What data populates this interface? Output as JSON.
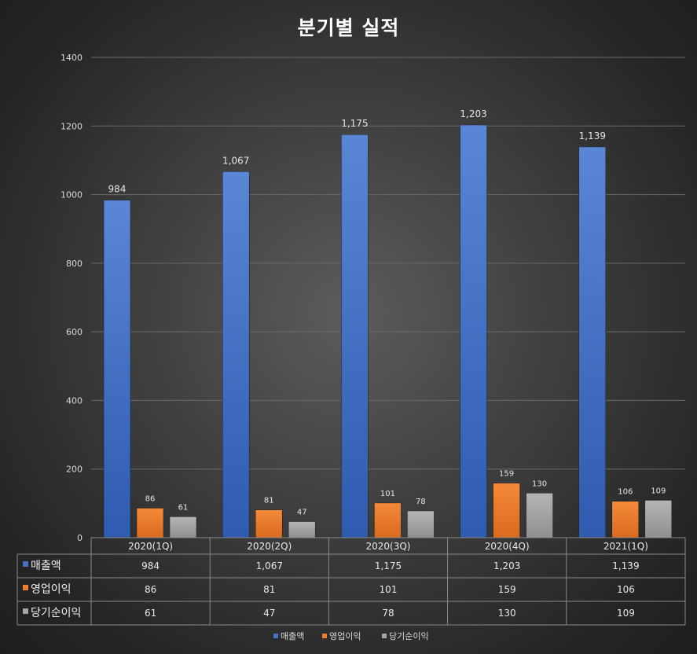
{
  "chart_data": {
    "type": "bar",
    "title": "분기별 실적",
    "categories": [
      "2020(1Q)",
      "2020(2Q)",
      "2020(3Q)",
      "2020(4Q)",
      "2021(1Q)"
    ],
    "series": [
      {
        "name": "매출액",
        "values": [
          984,
          1067,
          1175,
          1203,
          1139
        ],
        "labels": [
          "984",
          "1,067",
          "1,175",
          "1,203",
          "1,139"
        ],
        "color": "#4472c4"
      },
      {
        "name": "영업이익",
        "values": [
          86,
          81,
          101,
          159,
          106
        ],
        "labels": [
          "86",
          "81",
          "101",
          "159",
          "106"
        ],
        "color": "#ed7d31"
      },
      {
        "name": "당기순이익",
        "values": [
          61,
          47,
          78,
          130,
          109
        ],
        "labels": [
          "61",
          "47",
          "78",
          "130",
          "109"
        ],
        "color": "#a5a5a5"
      }
    ],
    "yticks": [
      "0",
      "200",
      "400",
      "600",
      "800",
      "1000",
      "1200",
      "1400"
    ],
    "ylim": [
      0,
      1400
    ],
    "grid": true,
    "legend": "bottom",
    "data_table": true
  }
}
